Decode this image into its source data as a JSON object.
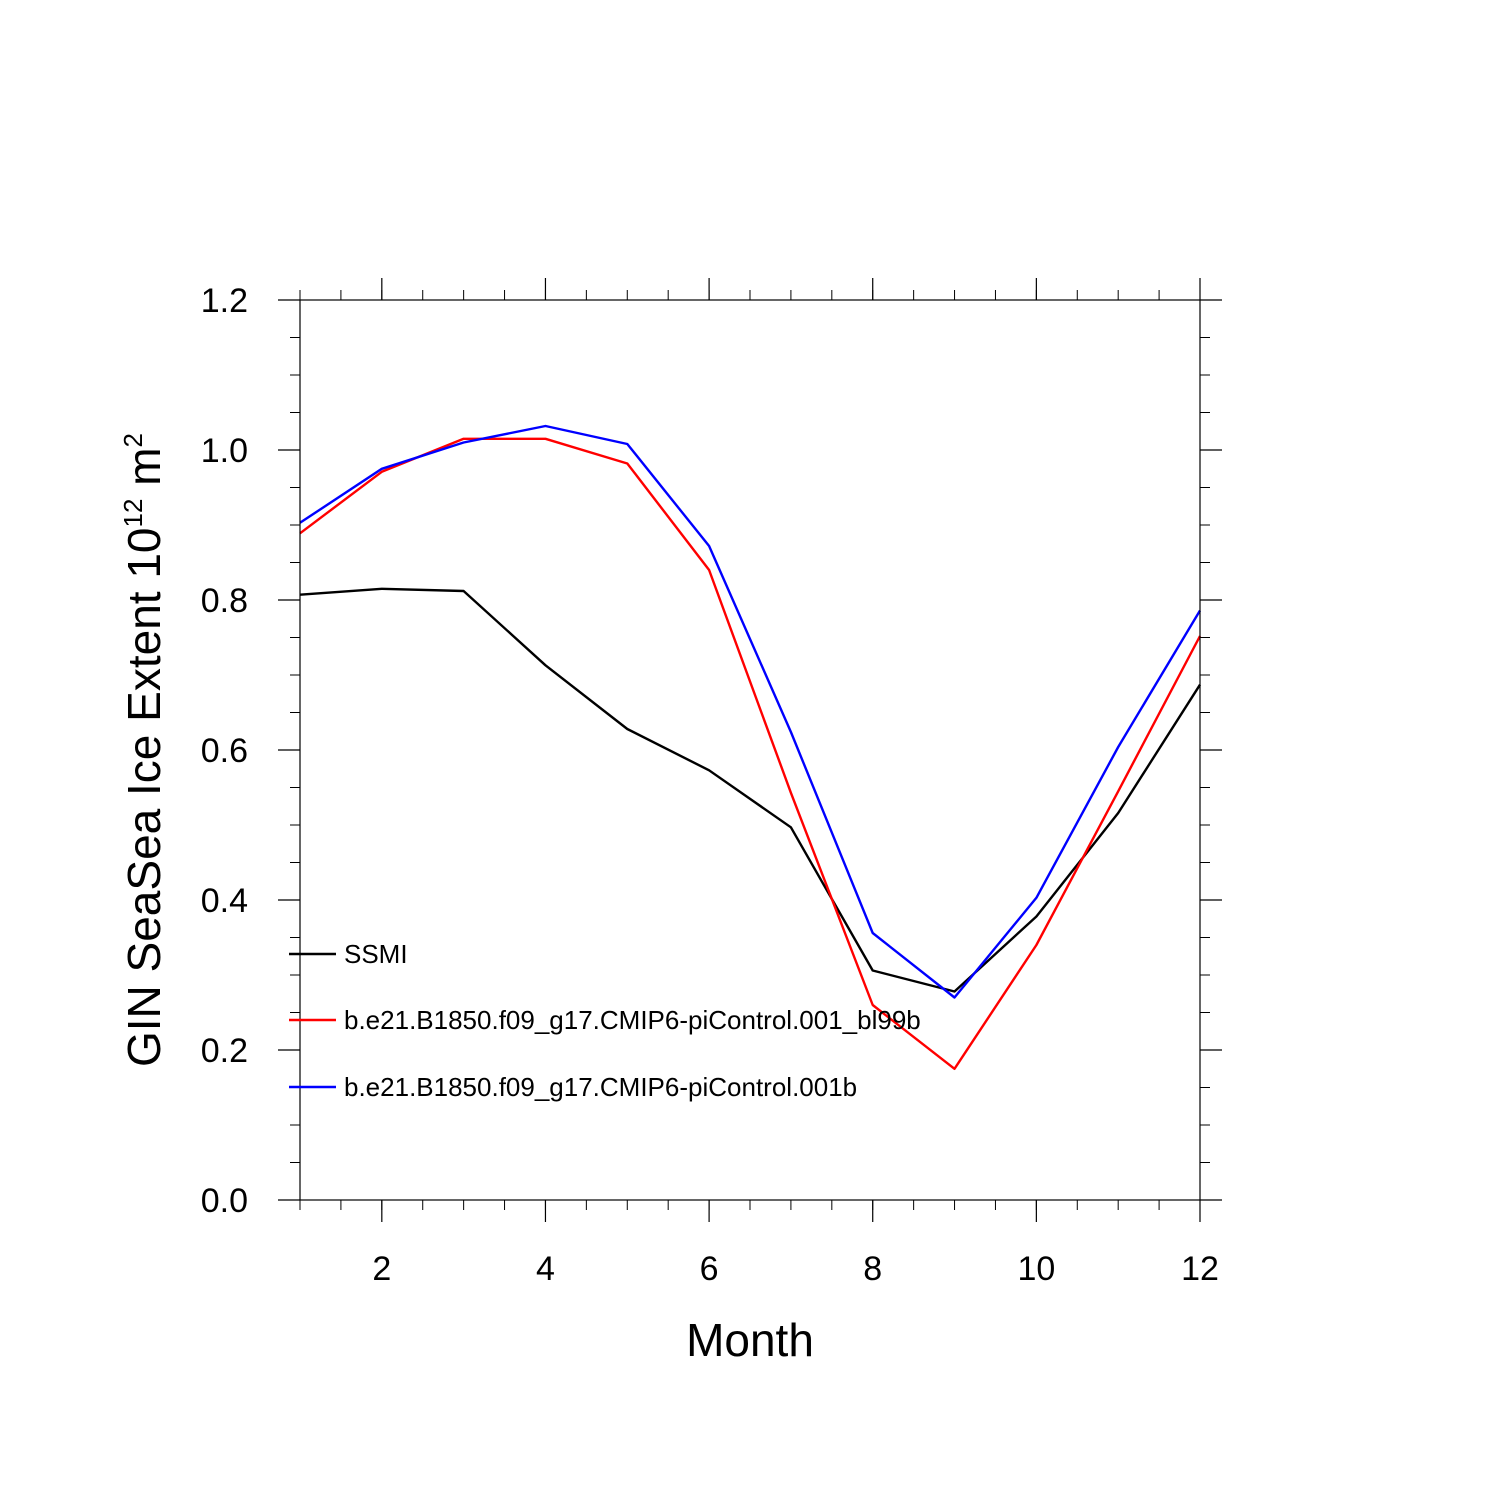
{
  "chart_data": {
    "type": "line",
    "title": "",
    "xlabel": "Month",
    "ylabel": {
      "prefix": "GIN SeaSea Ice Extent 10",
      "exponent": "12",
      "unit_base": " m",
      "unit_exponent": "2"
    },
    "xlim": [
      1,
      12
    ],
    "ylim": [
      0,
      1.2
    ],
    "x_ticks": [
      2,
      4,
      6,
      8,
      10,
      12
    ],
    "x_tick_labels": [
      "2",
      "4",
      "6",
      "8",
      "10",
      "12"
    ],
    "y_ticks": [
      0,
      0.2,
      0.4,
      0.6,
      0.8,
      1.0,
      1.2
    ],
    "y_tick_labels": [
      "0.0",
      "0.2",
      "0.4",
      "0.6",
      "0.8",
      "1.0",
      "1.2"
    ],
    "legend_position": "bottom-left",
    "x": [
      1,
      2,
      3,
      4,
      5,
      6,
      7,
      8,
      9,
      10,
      11,
      12
    ],
    "series": [
      {
        "name": "SSMI",
        "color": "#000000",
        "values": [
          0.807,
          0.815,
          0.812,
          0.713,
          0.628,
          0.573,
          0.497,
          0.306,
          0.278,
          0.378,
          0.516,
          0.687
        ]
      },
      {
        "name": "b.e21.B1850.f09_g17.CMIP6-piControl.001_bl99b",
        "color": "#ff0000",
        "values": [
          0.889,
          0.971,
          1.015,
          1.015,
          0.982,
          0.84,
          0.543,
          0.26,
          0.175,
          0.34,
          0.545,
          0.752
        ]
      },
      {
        "name": "b.e21.B1850.f09_g17.CMIP6-piControl.001b",
        "color": "#0000ff",
        "values": [
          0.903,
          0.975,
          1.01,
          1.032,
          1.008,
          0.872,
          0.624,
          0.356,
          0.27,
          0.403,
          0.604,
          0.786
        ]
      }
    ]
  }
}
